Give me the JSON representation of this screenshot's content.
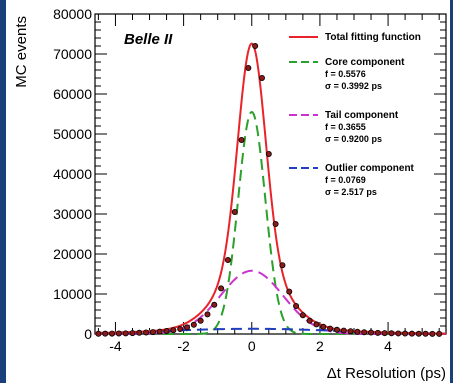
{
  "chart_data": {
    "type": "line",
    "experiment_label": "Belle II",
    "xlabel": "Δt Resolution (ps)",
    "ylabel": "MC events",
    "xlim": [
      -4.6,
      5.7
    ],
    "ylim": [
      0,
      80000
    ],
    "x_ticks": [
      -4,
      -2,
      0,
      2,
      4
    ],
    "y_ticks": [
      0,
      10000,
      20000,
      30000,
      40000,
      50000,
      60000,
      70000,
      80000
    ],
    "legend_position": "top-right",
    "components": [
      {
        "name": "Total fitting function",
        "role": "total",
        "color": "#e8242a",
        "dash": "solid"
      },
      {
        "name": "Core component",
        "role": "core",
        "color": "#2ca02c",
        "dash": "dashed",
        "f_label": "f = 0.5576",
        "sigma_label": "σ = 0.3992 ps",
        "fraction": 0.5576,
        "sigma": 0.3992,
        "peak": 55500
      },
      {
        "name": "Tail component",
        "role": "tail",
        "color": "#cc33cc",
        "dash": "dashed",
        "f_label": "f = 0.3655",
        "sigma_label": "σ = 0.9200 ps",
        "fraction": 0.3655,
        "sigma": 0.92,
        "peak": 15800
      },
      {
        "name": "Outlier component",
        "role": "outlier",
        "color": "#1f3fbf",
        "dash": "dashed",
        "f_label": "f = 0.0769",
        "sigma_label": "σ = 2.517 ps",
        "fraction": 0.0769,
        "sigma": 2.517,
        "peak": 1300
      }
    ],
    "mc_points": {
      "name": "MC events",
      "color": "#000000",
      "marker_color": "#8b1a1a",
      "x": [
        -4.5,
        -4.3,
        -4.1,
        -3.9,
        -3.7,
        -3.5,
        -3.3,
        -3.1,
        -2.9,
        -2.7,
        -2.5,
        -2.3,
        -2.1,
        -1.9,
        -1.7,
        -1.5,
        -1.3,
        -1.1,
        -0.9,
        -0.7,
        -0.5,
        -0.3,
        -0.1,
        0.1,
        0.3,
        0.5,
        0.7,
        0.9,
        1.1,
        1.3,
        1.5,
        1.7,
        1.9,
        2.1,
        2.3,
        2.5,
        2.7,
        2.9,
        3.1,
        3.3,
        3.5,
        3.7,
        3.9,
        4.1,
        4.3,
        4.5,
        4.7,
        4.9,
        5.1,
        5.3,
        5.5
      ],
      "y": [
        60,
        80,
        100,
        130,
        170,
        230,
        300,
        380,
        480,
        600,
        750,
        950,
        1250,
        1650,
        2300,
        3300,
        4900,
        7300,
        11400,
        18500,
        30500,
        48500,
        66500,
        72000,
        64000,
        45000,
        27500,
        17200,
        10600,
        7000,
        4700,
        3300,
        2400,
        1800,
        1350,
        1050,
        850,
        700,
        560,
        450,
        360,
        290,
        230,
        180,
        140,
        110,
        90,
        70,
        55,
        45,
        35
      ]
    }
  }
}
